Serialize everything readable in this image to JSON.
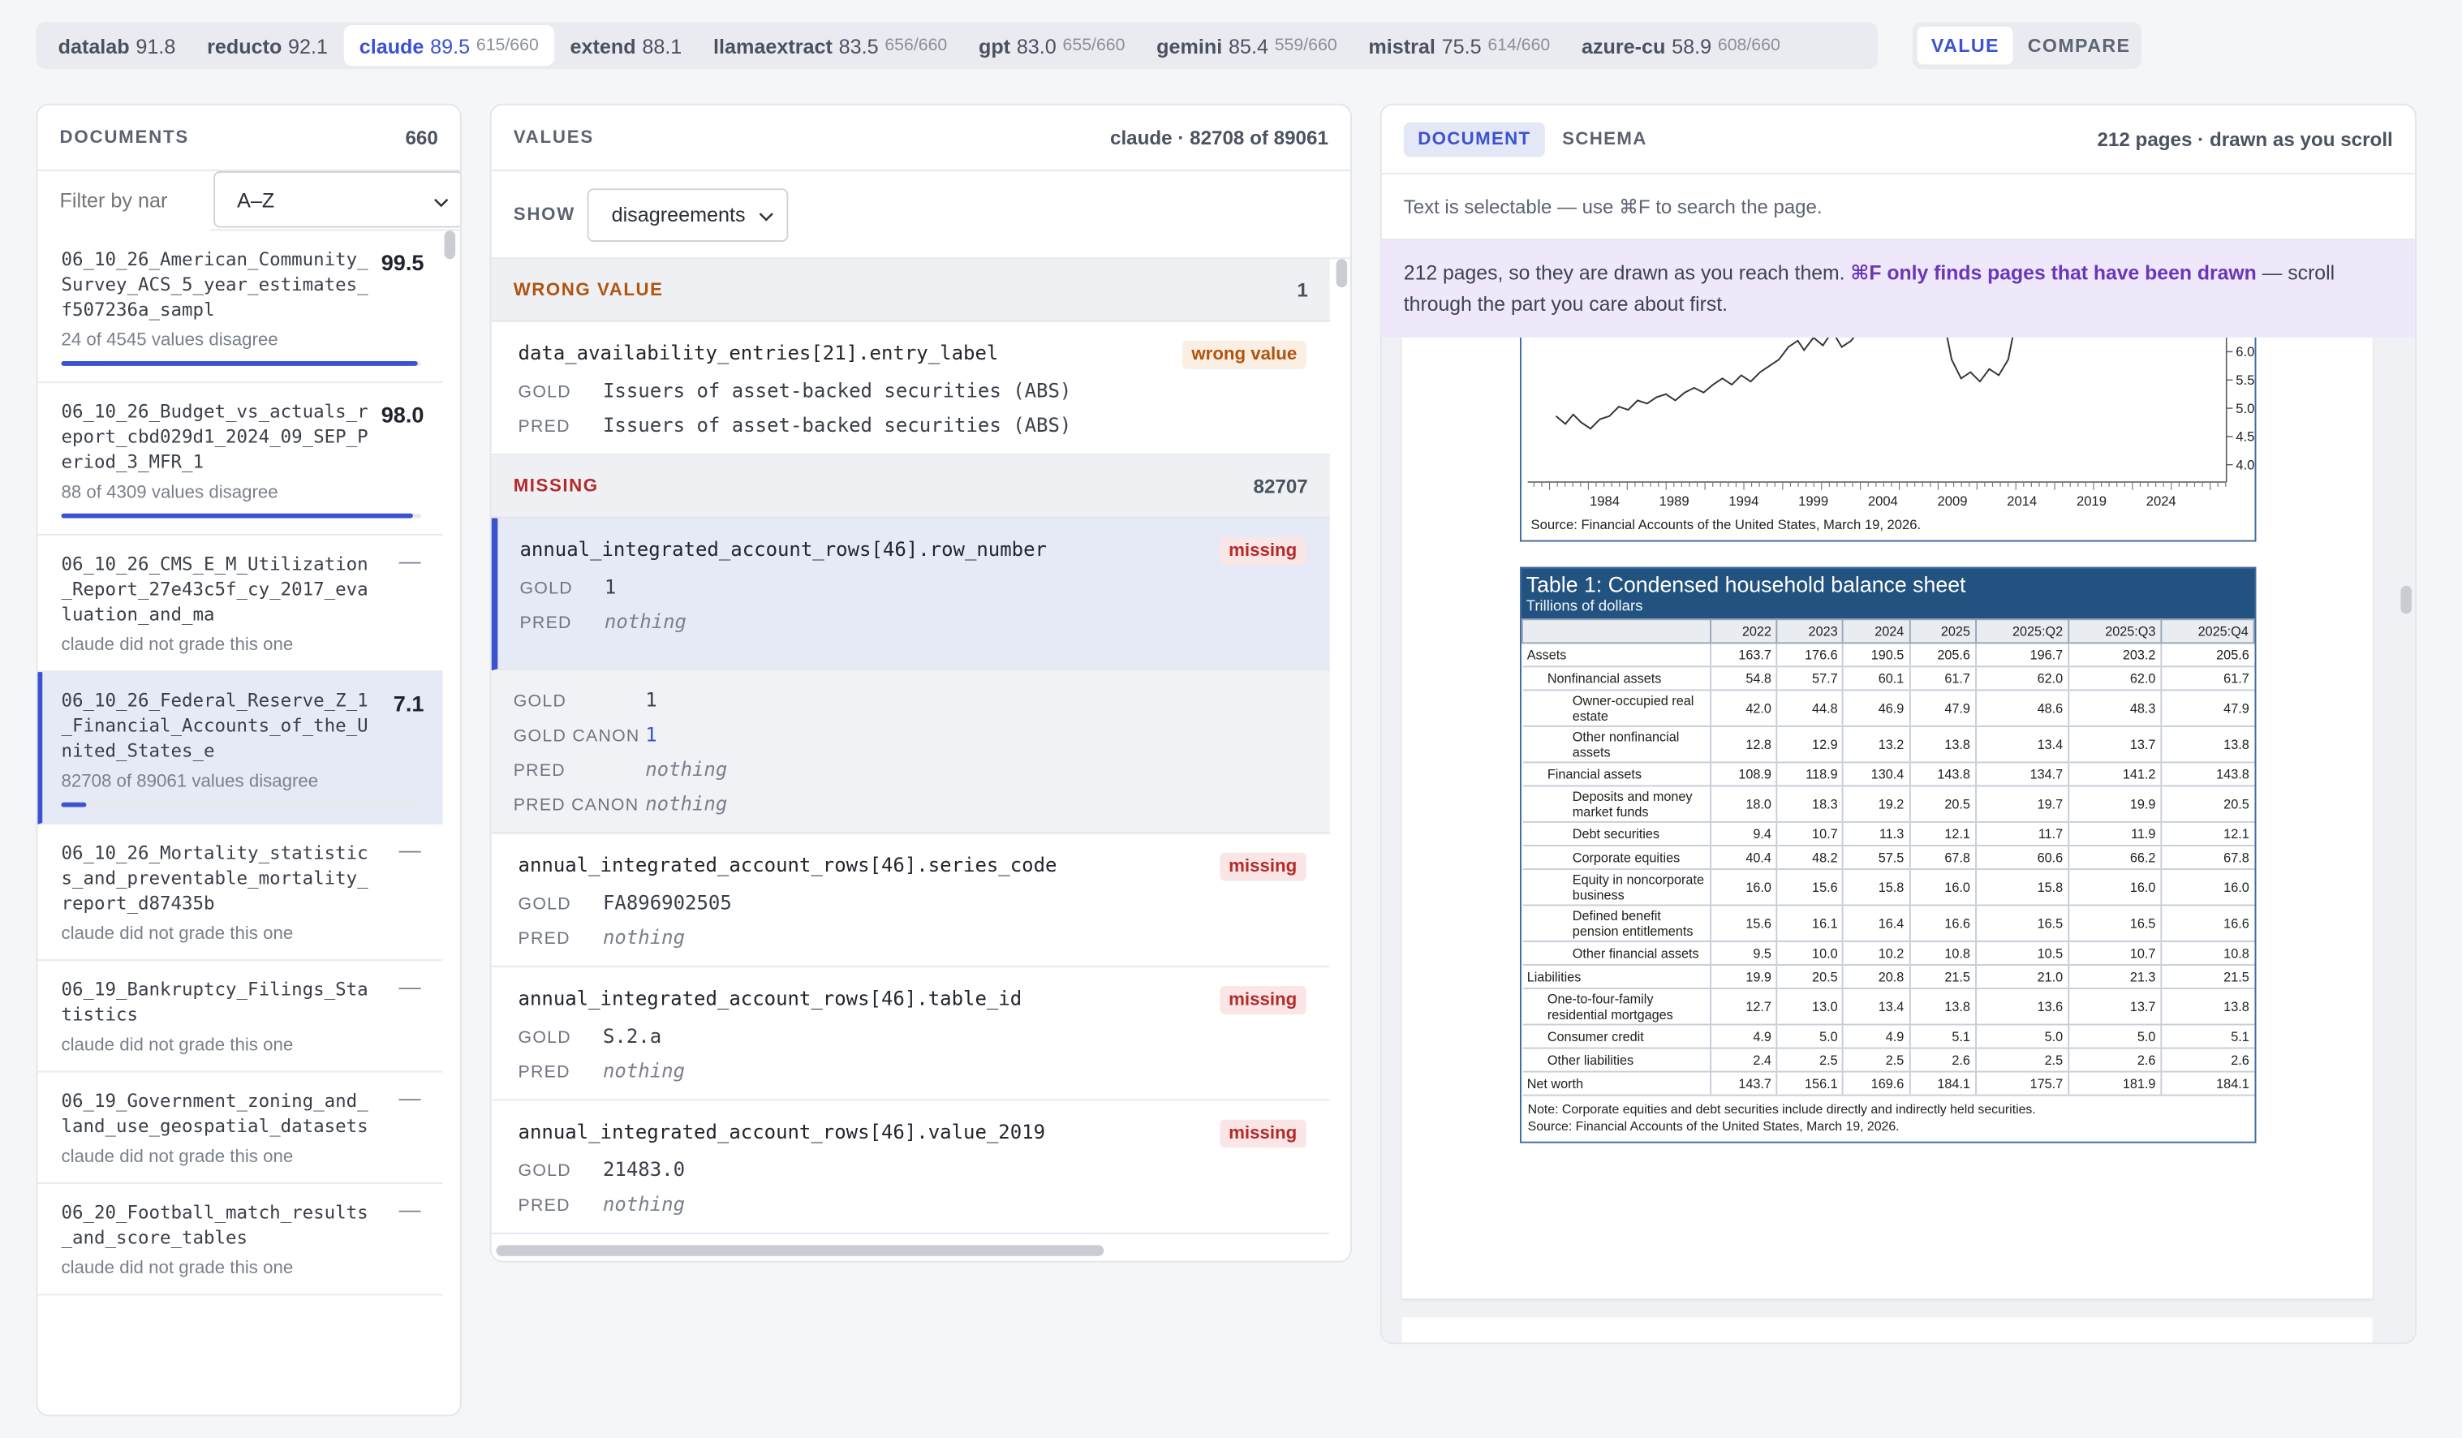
{
  "models": [
    {
      "name": "datalab",
      "score": "91.8",
      "count": ""
    },
    {
      "name": "reducto",
      "score": "92.1",
      "count": ""
    },
    {
      "name": "claude",
      "score": "89.5",
      "count": "615/660",
      "active": true
    },
    {
      "name": "extend",
      "score": "88.1",
      "count": ""
    },
    {
      "name": "llamaextract",
      "score": "83.5",
      "count": "656/660"
    },
    {
      "name": "gpt",
      "score": "83.0",
      "count": "655/660"
    },
    {
      "name": "gemini",
      "score": "85.4",
      "count": "559/660"
    },
    {
      "name": "mistral",
      "score": "75.5",
      "count": "614/660"
    },
    {
      "name": "azure-cu",
      "score": "58.9",
      "count": "608/660"
    }
  ],
  "modes": {
    "value": "VALUE",
    "compare": "COMPARE"
  },
  "documents": {
    "title": "DOCUMENTS",
    "count": "660",
    "filter_placeholder": "Filter by nar",
    "sort": "A–Z",
    "items": [
      {
        "name": "06_10_26_American_Community_Survey_ACS_5_year_estimates_f507236a_sampl",
        "score": "99.5",
        "meta": "24 of 4545 values disagree",
        "bar": 0.99
      },
      {
        "name": "06_10_26_Budget_vs_actuals_report_cbd029d1_2024_09_SEP_Period_3_MFR_1",
        "score": "98.0",
        "meta": "88 of 4309 values disagree",
        "bar": 0.98
      },
      {
        "name": "06_10_26_CMS_E_M_Utilization_Report_27e43c5f_cy_2017_evaluation_and_ma",
        "score": "—",
        "meta": "claude did not grade this one"
      },
      {
        "name": "06_10_26_Federal_Reserve_Z_1_Financial_Accounts_of_the_United_States_e",
        "score": "7.1",
        "meta": "82708 of 89061 values disagree",
        "bar": 0.071,
        "selected": true
      },
      {
        "name": "06_10_26_Mortality_statistics_and_preventable_mortality_report_d87435b",
        "score": "—",
        "meta": "claude did not grade this one"
      },
      {
        "name": "06_19_Bankruptcy_Filings_Statistics",
        "score": "—",
        "meta": "claude did not grade this one"
      },
      {
        "name": "06_19_Government_zoning_and_land_use_geospatial_datasets",
        "score": "—",
        "meta": "claude did not grade this one"
      },
      {
        "name": "06_20_Football_match_results_and_score_tables",
        "score": "—",
        "meta": "claude did not grade this one"
      }
    ]
  },
  "values": {
    "title": "VALUES",
    "summary": "claude · 82708 of 89061",
    "show_label": "SHOW",
    "show_value": "disagreements",
    "wrong_group": {
      "label": "WRONG VALUE",
      "count": "1"
    },
    "wrong_item": {
      "path": "data_availability_entries[21].entry_label",
      "badge": "wrong value",
      "gold": "Issuers of asset-backed securities (ABS)",
      "pred": "Issuers of asset-backed securities (ABS)"
    },
    "missing_group": {
      "label": "MISSING",
      "count": "82707"
    },
    "gold_label": "GOLD",
    "pred_label": "PRED",
    "gold_canon_label": "GOLD CANON",
    "pred_canon_label": "PRED CANON",
    "missing_badge": "missing",
    "nothing": "nothing",
    "missing_items": [
      {
        "path": "annual_integrated_account_rows[46].row_number",
        "gold": "1",
        "selected": true
      },
      {
        "path": "annual_integrated_account_rows[46].series_code",
        "gold": "FA896902505"
      },
      {
        "path": "annual_integrated_account_rows[46].table_id",
        "gold": "S.2.a"
      },
      {
        "path": "annual_integrated_account_rows[46].value_2019",
        "gold": "21483.0"
      }
    ],
    "detail": {
      "gold": "1",
      "gold_canon": "1",
      "pred": "nothing",
      "pred_canon": "nothing"
    }
  },
  "document_view": {
    "tabs": [
      "DOCUMENT",
      "SCHEMA"
    ],
    "pages_info": "212 pages · drawn as you scroll",
    "hint": "Text is selectable — use ⌘F to search the page.",
    "warn_pre": "212 pages, so they are drawn as you reach them. ",
    "warn_bold": "⌘F only finds pages that have been drawn",
    "warn_post": " — scroll through the part you care about first.",
    "chart": {
      "x_ticks": [
        "1984",
        "1989",
        "1994",
        "1999",
        "2004",
        "2009",
        "2014",
        "2019",
        "2024"
      ],
      "y_ticks": [
        "6.0",
        "5.5",
        "5.0",
        "4.5",
        "4.0"
      ],
      "source": "Source: Financial Accounts of the United States, March 19, 2026."
    },
    "table": {
      "title": "Table 1: Condensed household balance sheet",
      "subtitle": "Trillions of dollars",
      "columns": [
        "2022",
        "2023",
        "2024",
        "2025",
        "2025:Q2",
        "2025:Q3",
        "2025:Q4"
      ],
      "rows": [
        {
          "label": "Assets",
          "lvl": 0,
          "v": [
            "163.7",
            "176.6",
            "190.5",
            "205.6",
            "196.7",
            "203.2",
            "205.6"
          ]
        },
        {
          "label": "Nonfinancial assets",
          "lvl": 1,
          "v": [
            "54.8",
            "57.7",
            "60.1",
            "61.7",
            "62.0",
            "62.0",
            "61.7"
          ]
        },
        {
          "label": "Owner-occupied real estate",
          "lvl": 2,
          "v": [
            "42.0",
            "44.8",
            "46.9",
            "47.9",
            "48.6",
            "48.3",
            "47.9"
          ]
        },
        {
          "label": "Other nonfinancial assets",
          "lvl": 2,
          "v": [
            "12.8",
            "12.9",
            "13.2",
            "13.8",
            "13.4",
            "13.7",
            "13.8"
          ]
        },
        {
          "label": "Financial assets",
          "lvl": 1,
          "v": [
            "108.9",
            "118.9",
            "130.4",
            "143.8",
            "134.7",
            "141.2",
            "143.8"
          ]
        },
        {
          "label": "Deposits and money market funds",
          "lvl": 2,
          "v": [
            "18.0",
            "18.3",
            "19.2",
            "20.5",
            "19.7",
            "19.9",
            "20.5"
          ]
        },
        {
          "label": "Debt securities",
          "lvl": 2,
          "v": [
            "9.4",
            "10.7",
            "11.3",
            "12.1",
            "11.7",
            "11.9",
            "12.1"
          ]
        },
        {
          "label": "Corporate equities",
          "lvl": 2,
          "v": [
            "40.4",
            "48.2",
            "57.5",
            "67.8",
            "60.6",
            "66.2",
            "67.8"
          ]
        },
        {
          "label": "Equity in noncorporate business",
          "lvl": 2,
          "v": [
            "16.0",
            "15.6",
            "15.8",
            "16.0",
            "15.8",
            "16.0",
            "16.0"
          ]
        },
        {
          "label": "Defined benefit pension entitlements",
          "lvl": 2,
          "v": [
            "15.6",
            "16.1",
            "16.4",
            "16.6",
            "16.5",
            "16.5",
            "16.6"
          ]
        },
        {
          "label": "Other financial assets",
          "lvl": 2,
          "v": [
            "9.5",
            "10.0",
            "10.2",
            "10.8",
            "10.5",
            "10.7",
            "10.8"
          ]
        },
        {
          "label": "Liabilities",
          "lvl": 0,
          "v": [
            "19.9",
            "20.5",
            "20.8",
            "21.5",
            "21.0",
            "21.3",
            "21.5"
          ]
        },
        {
          "label": "One-to-four-family residential mortgages",
          "lvl": 1,
          "v": [
            "12.7",
            "13.0",
            "13.4",
            "13.8",
            "13.6",
            "13.7",
            "13.8"
          ]
        },
        {
          "label": "Consumer credit",
          "lvl": 1,
          "v": [
            "4.9",
            "5.0",
            "4.9",
            "5.1",
            "5.0",
            "5.0",
            "5.1"
          ]
        },
        {
          "label": "Other liabilities",
          "lvl": 1,
          "v": [
            "2.4",
            "2.5",
            "2.5",
            "2.6",
            "2.5",
            "2.6",
            "2.6"
          ]
        },
        {
          "label": "Net worth",
          "lvl": 0,
          "v": [
            "143.7",
            "156.1",
            "169.6",
            "184.1",
            "175.7",
            "181.9",
            "184.1"
          ]
        }
      ],
      "note": "Note: Corporate equities and debt securities include directly and indirectly held securities.",
      "source": "Source: Financial Accounts of the United States, March 19, 2026."
    }
  },
  "colors": {
    "accent": "#3c52d1",
    "wrong": "#b0540f",
    "missing": "#b32a2a",
    "table_header": "#22527f"
  }
}
